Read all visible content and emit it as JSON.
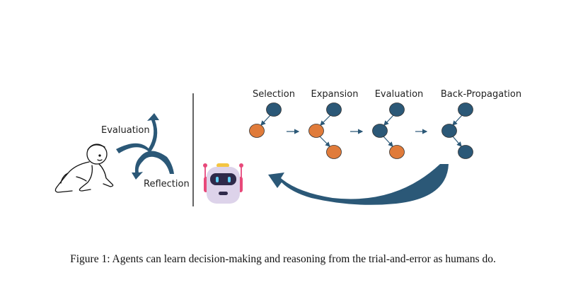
{
  "figure": {
    "left_panel": {
      "labels": {
        "evaluation": "Evaluation",
        "reflection": "Reflection"
      }
    },
    "right_panel": {
      "stages": [
        {
          "label": "Selection"
        },
        {
          "label": "Expansion"
        },
        {
          "label": "Evaluation"
        },
        {
          "label": "Back-Propagation"
        }
      ]
    },
    "colors": {
      "node_blue": "#2b5877",
      "node_orange": "#e07b3a",
      "arrow": "#2b5877"
    },
    "caption": "Figure 1: Agents can learn decision-making and reasoning from the trial-and-error as humans do."
  }
}
